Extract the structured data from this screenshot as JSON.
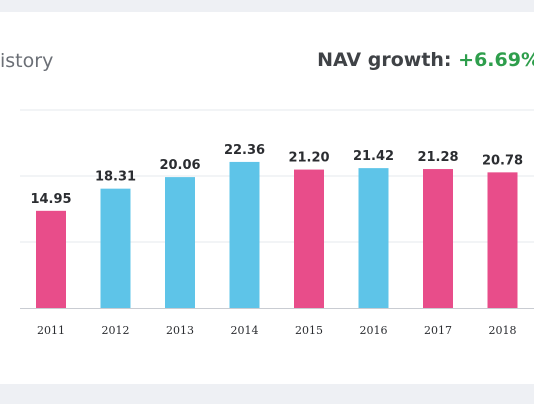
{
  "header": {
    "title": "istory",
    "growth_label": "NAV growth:",
    "growth_value": "+6.69%"
  },
  "colors": {
    "positive_bar": "#5ec4e8",
    "negative_bar": "#e84d8a",
    "growth_text": "#2e9e4c"
  },
  "chart_data": {
    "type": "bar",
    "title": "",
    "xlabel": "",
    "ylabel": "",
    "categories": [
      "2011",
      "2012",
      "2013",
      "2014",
      "2015",
      "2016",
      "2017",
      "2018"
    ],
    "values": [
      14.95,
      18.31,
      20.06,
      22.36,
      21.2,
      21.42,
      21.28,
      20.78
    ],
    "value_labels": [
      "14.95",
      "18.31",
      "20.06",
      "22.36",
      "21.20",
      "21.42",
      "21.28",
      "20.78"
    ],
    "bar_colors": [
      "#e84d8a",
      "#5ec4e8",
      "#5ec4e8",
      "#5ec4e8",
      "#e84d8a",
      "#5ec4e8",
      "#e84d8a",
      "#e84d8a"
    ],
    "ylim": [
      0,
      30
    ],
    "grid": true,
    "legend": "none"
  }
}
